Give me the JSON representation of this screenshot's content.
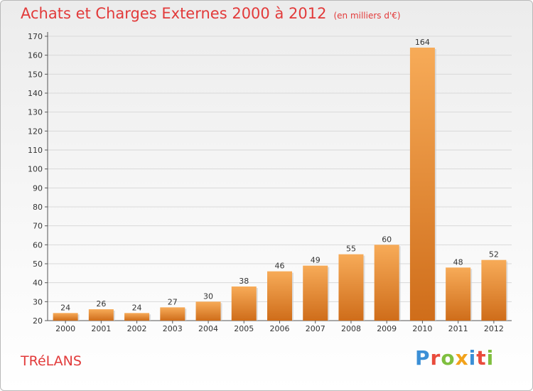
{
  "header": {
    "title": "Achats et Charges Externes 2000 à 2012",
    "unit": "(en milliers d'€)"
  },
  "footer": {
    "commune": "TRéLANS",
    "brand": "Proxiti"
  },
  "colors": {
    "title": "#e23a3a",
    "bar_light": "#f5a652",
    "bar_dark": "#d06f1c",
    "grid": "#d8d8d8"
  },
  "chart_data": {
    "type": "bar",
    "title": "Achats et Charges Externes 2000 à 2012",
    "subtitle": "(en milliers d'€)",
    "xlabel": "",
    "ylabel": "",
    "categories": [
      "2000",
      "2001",
      "2002",
      "2003",
      "2004",
      "2005",
      "2006",
      "2007",
      "2008",
      "2009",
      "2010",
      "2011",
      "2012"
    ],
    "values": [
      24,
      26,
      24,
      27,
      30,
      38,
      46,
      49,
      55,
      60,
      164,
      48,
      52
    ],
    "ylim": [
      20,
      170
    ],
    "yticks": [
      20,
      30,
      40,
      50,
      60,
      70,
      80,
      90,
      100,
      110,
      120,
      130,
      140,
      150,
      160,
      170
    ],
    "grid": true,
    "legend": "none"
  }
}
